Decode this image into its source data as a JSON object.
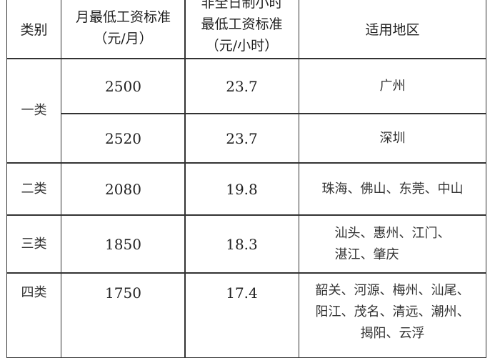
{
  "header": {
    "category": "类别",
    "monthly": [
      "月最低工资标准",
      "（元/月）"
    ],
    "hourly": [
      "非全日制小时",
      "最低工资标准",
      "（元/小时）"
    ],
    "regions": "适用地区"
  },
  "rows": [
    {
      "category": "一类",
      "monthly": "2500",
      "hourly": "23.7",
      "regions": [
        "广州"
      ]
    },
    {
      "category": "一类",
      "monthly": "2520",
      "hourly": "23.7",
      "regions": [
        "深圳"
      ]
    },
    {
      "category": "二类",
      "monthly": "2080",
      "hourly": "19.8",
      "regions": [
        "珠海、佛山、东莞、中山"
      ]
    },
    {
      "category": "三类",
      "monthly": "1850",
      "hourly": "18.3",
      "regions": [
        "汕头、惠州、江门、",
        "湛江、肇庆"
      ]
    },
    {
      "category": "四类",
      "monthly": "1750",
      "hourly": "17.4",
      "regions": [
        "韶关、河源、梅州、汕尾、",
        "阳江、茂名、清远、潮州、",
        "揭阳、云浮"
      ]
    }
  ]
}
